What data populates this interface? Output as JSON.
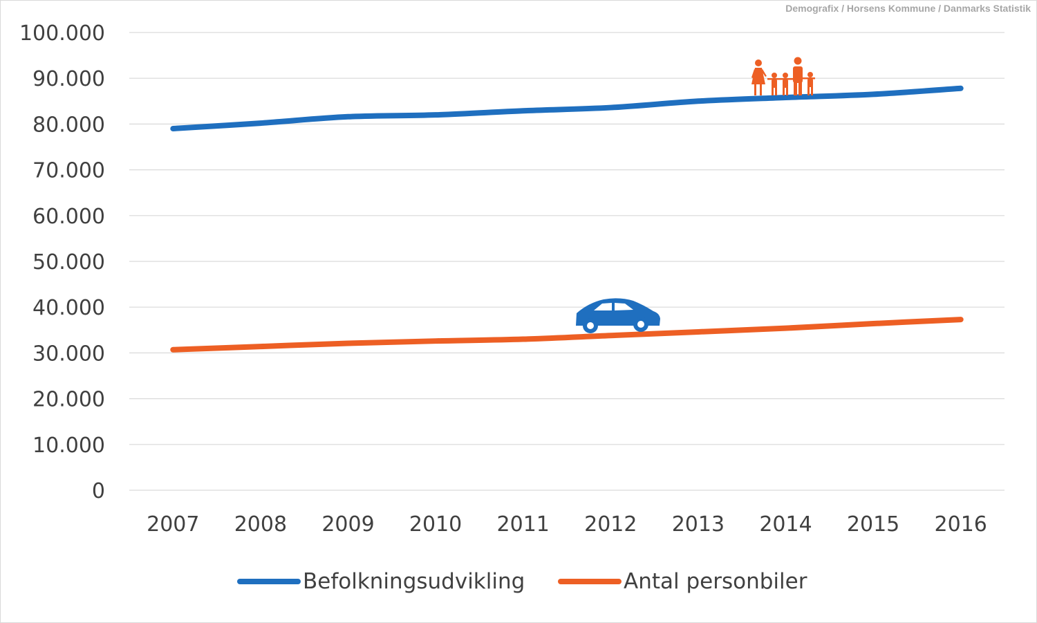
{
  "source_note": "Demografix / Horsens Kommune / Danmarks Statistik",
  "colors": {
    "population": "#1f6fbf",
    "cars": "#ed5f24",
    "grid": "#d9d9d9",
    "text": "#404040"
  },
  "icons": {
    "population_marker": "family-icon",
    "cars_marker": "car-icon"
  },
  "chart_data": {
    "type": "line",
    "title": "",
    "xlabel": "",
    "ylabel": "",
    "categories": [
      "2007",
      "2008",
      "2009",
      "2010",
      "2011",
      "2012",
      "2013",
      "2014",
      "2015",
      "2016"
    ],
    "ylim": [
      0,
      100000
    ],
    "yticks": [
      0,
      10000,
      20000,
      30000,
      40000,
      50000,
      60000,
      70000,
      80000,
      90000,
      100000
    ],
    "ytick_labels": [
      "0",
      "10.000",
      "20.000",
      "30.000",
      "40.000",
      "50.000",
      "60.000",
      "70.000",
      "80.000",
      "90.000",
      "100.000"
    ],
    "grid": true,
    "legend_position": "bottom",
    "series": [
      {
        "name": "Befolkningsudvikling",
        "color": "#1f6fbf",
        "values": [
          79000,
          80200,
          81600,
          82000,
          82900,
          83600,
          85000,
          85800,
          86500,
          87800
        ]
      },
      {
        "name": "Antal personbiler",
        "color": "#ed5f24",
        "values": [
          30700,
          31400,
          32100,
          32600,
          33000,
          33800,
          34600,
          35400,
          36400,
          37300
        ]
      }
    ]
  }
}
